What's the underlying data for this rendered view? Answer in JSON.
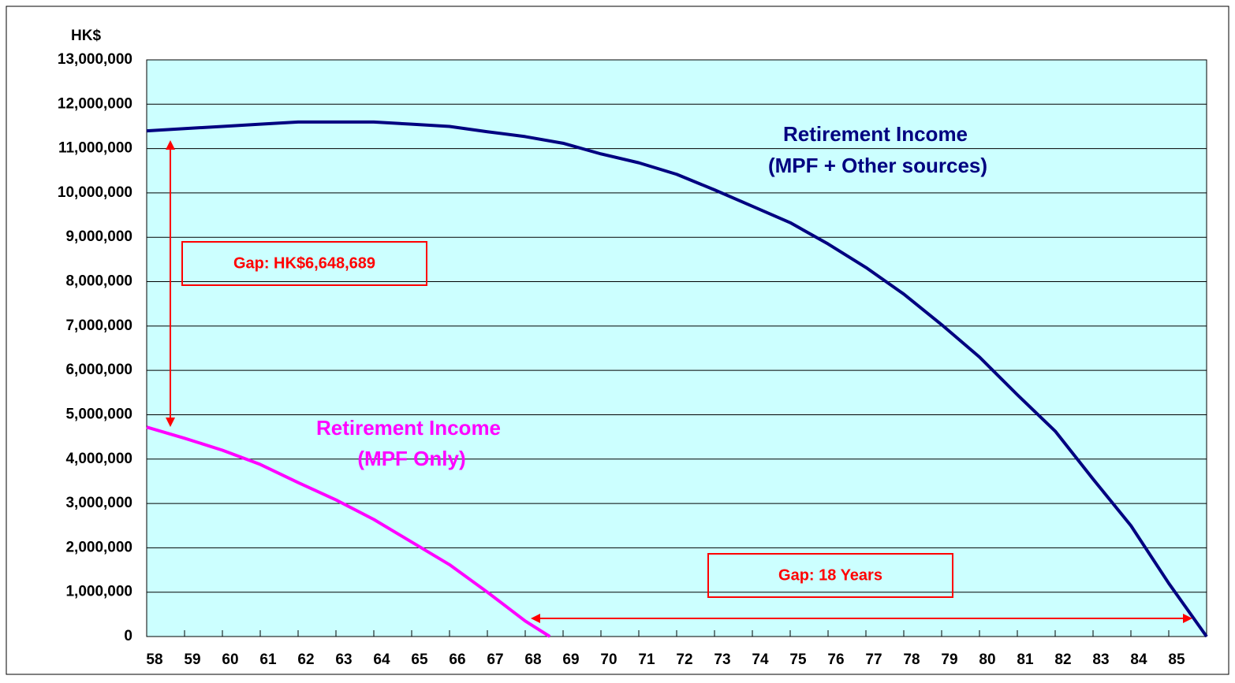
{
  "chart_data": {
    "type": "line",
    "y_label": "HK$",
    "xlim": [
      58,
      86
    ],
    "xticks": [
      58,
      59,
      60,
      61,
      62,
      63,
      64,
      65,
      66,
      67,
      68,
      69,
      70,
      71,
      72,
      73,
      74,
      75,
      76,
      77,
      78,
      79,
      80,
      81,
      82,
      83,
      84,
      85
    ],
    "ylim": [
      0,
      13000000
    ],
    "yticks": [
      {
        "value": 0,
        "label": "0"
      },
      {
        "value": 1000000,
        "label": "1,000,000"
      },
      {
        "value": 2000000,
        "label": "2,000,000"
      },
      {
        "value": 3000000,
        "label": "3,000,000"
      },
      {
        "value": 4000000,
        "label": "4,000,000"
      },
      {
        "value": 5000000,
        "label": "5,000,000"
      },
      {
        "value": 6000000,
        "label": "6,000,000"
      },
      {
        "value": 7000000,
        "label": "7,000,000"
      },
      {
        "value": 8000000,
        "label": "8,000,000"
      },
      {
        "value": 9000000,
        "label": "9,000,000"
      },
      {
        "value": 10000000,
        "label": "10,000,000"
      },
      {
        "value": 11000000,
        "label": "11,000,000"
      },
      {
        "value": 12000000,
        "label": "12,000,000"
      },
      {
        "value": 13000000,
        "label": "13,000,000"
      }
    ],
    "grid": true,
    "plot_background": "#ccffff",
    "series": [
      {
        "name": [
          "Retirement Income",
          "(MPF + Other sources)"
        ],
        "color": "#000080",
        "x": [
          58,
          59,
          60,
          61,
          62,
          63,
          64,
          65,
          66,
          67,
          68,
          69,
          70,
          71,
          72,
          73,
          74,
          75,
          76,
          77,
          78,
          79,
          80,
          81,
          82,
          83,
          84,
          85,
          86
        ],
        "values": [
          11400000,
          11450000,
          11500000,
          11550000,
          11600000,
          11600000,
          11600000,
          11550000,
          11500000,
          11380000,
          11270000,
          11120000,
          10880000,
          10680000,
          10420000,
          10070000,
          9700000,
          9330000,
          8850000,
          8320000,
          7720000,
          7030000,
          6300000,
          5450000,
          4630000,
          3550000,
          2500000,
          1200000,
          0
        ]
      },
      {
        "name": [
          "Retirement Income",
          "(MPF Only)"
        ],
        "color": "#ff00ff",
        "x": [
          58,
          59,
          60,
          61,
          62,
          63,
          64,
          65,
          66,
          67,
          68,
          68.65
        ],
        "values": [
          4720000,
          4470000,
          4200000,
          3880000,
          3470000,
          3080000,
          2640000,
          2130000,
          1620000,
          1000000,
          350000,
          0
        ]
      }
    ],
    "annotations": [
      "Gap: HK$6,648,689",
      "Gap: 18 Years"
    ]
  }
}
